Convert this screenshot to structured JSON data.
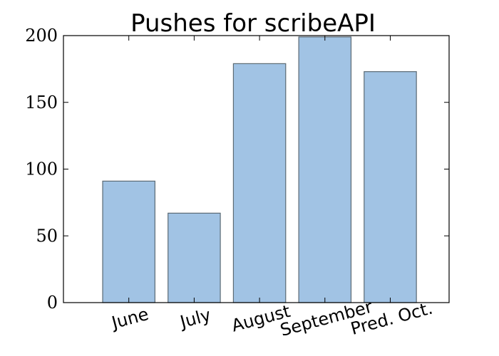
{
  "chart_data": {
    "type": "bar",
    "title": "Pushes for scribeAPI",
    "categories": [
      "June",
      "July",
      "August",
      "September",
      "Pred. Oct."
    ],
    "values": [
      91,
      67,
      179,
      199,
      173
    ],
    "xlabel": "",
    "ylabel": "",
    "ylim": [
      0,
      200
    ],
    "yticks": [
      "0",
      "50",
      "100",
      "150",
      "200"
    ],
    "grid": false,
    "bar_color": "#a1c3e4",
    "bar_edge_color": "#5b6a74"
  }
}
